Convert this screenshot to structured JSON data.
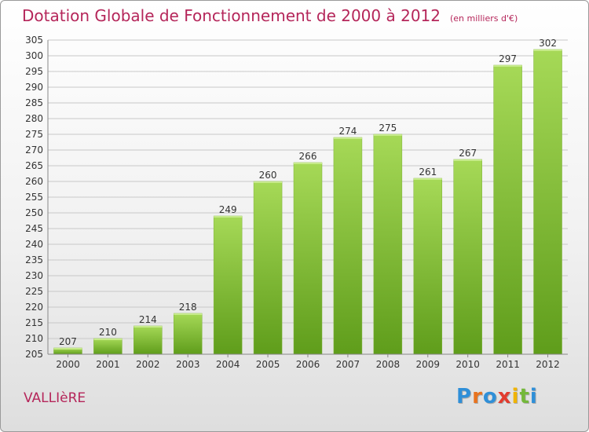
{
  "title": "Dotation Globale de Fonctionnement de 2000 à 2012",
  "unit": "(en milliers d'€)",
  "location": "VALLIèRE",
  "logo": {
    "text": "Proxiti",
    "letters": [
      "P",
      "r",
      "o",
      "x",
      "i",
      "t",
      "i"
    ]
  },
  "colors": {
    "title": "#b5265a",
    "bar_light": "#a6d957",
    "bar_dark": "#5f9d1b",
    "grid": "#c8c8c8",
    "axis_text": "#333333"
  },
  "chart_data": {
    "type": "bar",
    "title": "Dotation Globale de Fonctionnement de 2000 à 2012",
    "subtitle": "(en milliers d'€)",
    "categories": [
      "2000",
      "2001",
      "2002",
      "2003",
      "2004",
      "2005",
      "2006",
      "2007",
      "2008",
      "2009",
      "2010",
      "2011",
      "2012"
    ],
    "values": [
      207,
      210,
      214,
      218,
      249,
      260,
      266,
      274,
      275,
      261,
      267,
      297,
      302
    ],
    "ylim": [
      205,
      305
    ],
    "ytick_step": 5,
    "grid": true,
    "legend": "none"
  }
}
